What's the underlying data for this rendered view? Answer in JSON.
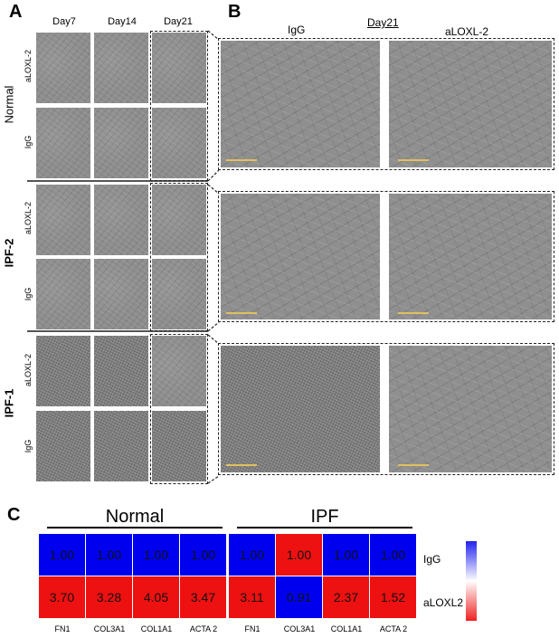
{
  "panels": {
    "a": "A",
    "b": "B",
    "c": "C"
  },
  "panelA": {
    "columns": [
      "Day7",
      "Day14",
      "Day21"
    ],
    "groups": [
      "Normal",
      "IPF-2",
      "IPF-1"
    ],
    "treatments": [
      "aLOXL-2",
      "IgG"
    ]
  },
  "panelB": {
    "title": "Day21",
    "columns": [
      "IgG",
      "aLOXL-2"
    ]
  },
  "panelC": {
    "groups": [
      "Normal",
      "IPF"
    ],
    "rows": [
      "IgG",
      "aLOXL2"
    ],
    "genes": [
      "FN1",
      "COL3A1",
      "COL1A1",
      "ACTA 2"
    ],
    "colors": {
      "high": "#0000ee",
      "low": "#ee1111"
    }
  },
  "chart_data": {
    "type": "heatmap",
    "row_labels": [
      "IgG",
      "aLOXL2"
    ],
    "col_labels": [
      "FN1",
      "COL3A1",
      "COL1A1",
      "ACTA 2"
    ],
    "groups": [
      {
        "name": "Normal",
        "values": [
          [
            "1.00",
            "1.00",
            "1.00",
            "1.00"
          ],
          [
            "3.70",
            "3.28",
            "4.05",
            "3.47"
          ]
        ]
      },
      {
        "name": "IPF",
        "values": [
          [
            "1.00",
            "1.00",
            "1.00",
            "1.00"
          ],
          [
            "3.11",
            "0.91",
            "2.37",
            "1.52"
          ]
        ]
      }
    ],
    "cell_colors": {
      "Normal": [
        [
          "blue",
          "blue",
          "blue",
          "blue"
        ],
        [
          "red",
          "red",
          "red",
          "red"
        ]
      ],
      "IPF": [
        [
          "blue",
          "red",
          "blue",
          "blue"
        ],
        [
          "red",
          "blue",
          "red",
          "red"
        ]
      ]
    }
  }
}
